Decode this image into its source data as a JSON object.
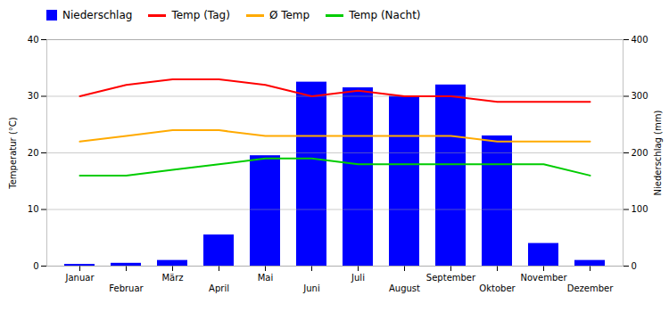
{
  "chart_data": {
    "type": "bar",
    "categories": [
      "Januar",
      "Februar",
      "März",
      "April",
      "Mai",
      "Juni",
      "Juli",
      "August",
      "September",
      "Oktober",
      "November",
      "Dezember"
    ],
    "series": [
      {
        "name": "Niederschlag",
        "type": "bar",
        "axis": "y2",
        "color": "#0000ff",
        "values": [
          3,
          5,
          10,
          55,
          195,
          325,
          315,
          300,
          320,
          230,
          40,
          10
        ]
      },
      {
        "name": "Temp (Tag)",
        "type": "line",
        "color": "#ff0000",
        "values": [
          30,
          32,
          33,
          33,
          32,
          30,
          31,
          30,
          30,
          29,
          29,
          29
        ]
      },
      {
        "name": "Ø Temp",
        "type": "line",
        "color": "#ffaa00",
        "values": [
          22,
          23,
          24,
          24,
          23,
          23,
          23,
          23,
          23,
          22,
          22,
          22
        ]
      },
      {
        "name": "Temp (Nacht)",
        "type": "line",
        "color": "#00cc00",
        "values": [
          16,
          16,
          17,
          18,
          19,
          19,
          18,
          18,
          18,
          18,
          18,
          16
        ]
      }
    ],
    "ylabel": "Temperatur (°C)",
    "y2label": "Niederschlag (mm)",
    "ylim": [
      0,
      40
    ],
    "yticks": [
      0,
      10,
      20,
      30,
      40
    ],
    "y2lim": [
      0,
      400
    ],
    "y2ticks": [
      0,
      100,
      200,
      300,
      400
    ],
    "grid": true,
    "legend": "top"
  }
}
